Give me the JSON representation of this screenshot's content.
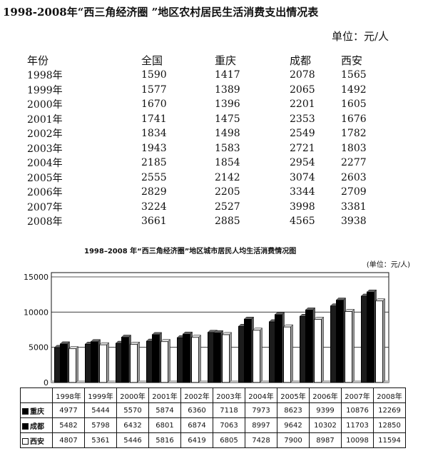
{
  "title": "1998-2008年“西三角经济圈 ”地区农村居民生活消费支出情况表",
  "unit": "单位：元/人",
  "rural_table": {
    "headers": [
      "年份",
      "全国",
      "重庆",
      "成都",
      "西安"
    ],
    "rows": [
      [
        "1998年",
        "1590",
        "1417",
        "2078",
        "1565"
      ],
      [
        "1999年",
        "1577",
        "1389",
        "2065",
        "1492"
      ],
      [
        "2000年",
        "1670",
        "1396",
        "2201",
        "1605"
      ],
      [
        "2001年",
        "1741",
        "1475",
        "2353",
        "1676"
      ],
      [
        "2002年",
        "1834",
        "1498",
        "2549",
        "1782"
      ],
      [
        "2003年",
        "1943",
        "1583",
        "2721",
        "1803"
      ],
      [
        "2004年",
        "2185",
        "1854",
        "2954",
        "2277"
      ],
      [
        "2005年",
        "2555",
        "2142",
        "3074",
        "2603"
      ],
      [
        "2006年",
        "2829",
        "2205",
        "3344",
        "2709"
      ],
      [
        "2007年",
        "3224",
        "2527",
        "3998",
        "3381"
      ],
      [
        "2008年",
        "3661",
        "2885",
        "4565",
        "3938"
      ]
    ]
  },
  "chart_title": "1998–2008 年“西三角经济圈”地区城市居民人均生活消费情况图",
  "chart_unit": "(单位：元/人)",
  "chart_data": {
    "type": "bar",
    "title": "1998–2008 年“西三角经济圈”地区城市居民人均生活消费情况图",
    "categories": [
      "1998年",
      "1999年",
      "2000年",
      "2001年",
      "2002年",
      "2003年",
      "2004年",
      "2005年",
      "2006年",
      "2007年",
      "2008年"
    ],
    "ylim": [
      0,
      15000
    ],
    "yticks": [
      "0",
      "5000",
      "10000",
      "15000"
    ],
    "grid": true,
    "series": [
      {
        "name": "重庆",
        "color": "#1a1a1a",
        "values": [
          4977,
          5444,
          5570,
          5874,
          6360,
          7118,
          7973,
          8623,
          9399,
          10876,
          12269
        ]
      },
      {
        "name": "成都",
        "color": "#000000",
        "values": [
          5482,
          5798,
          6432,
          6801,
          6874,
          7063,
          8997,
          9642,
          10302,
          11703,
          12850
        ]
      },
      {
        "name": "西安",
        "color": "#ffffff",
        "values": [
          4807,
          5361,
          5446,
          5816,
          6419,
          6805,
          7428,
          7900,
          8987,
          10098,
          11594
        ]
      }
    ]
  }
}
